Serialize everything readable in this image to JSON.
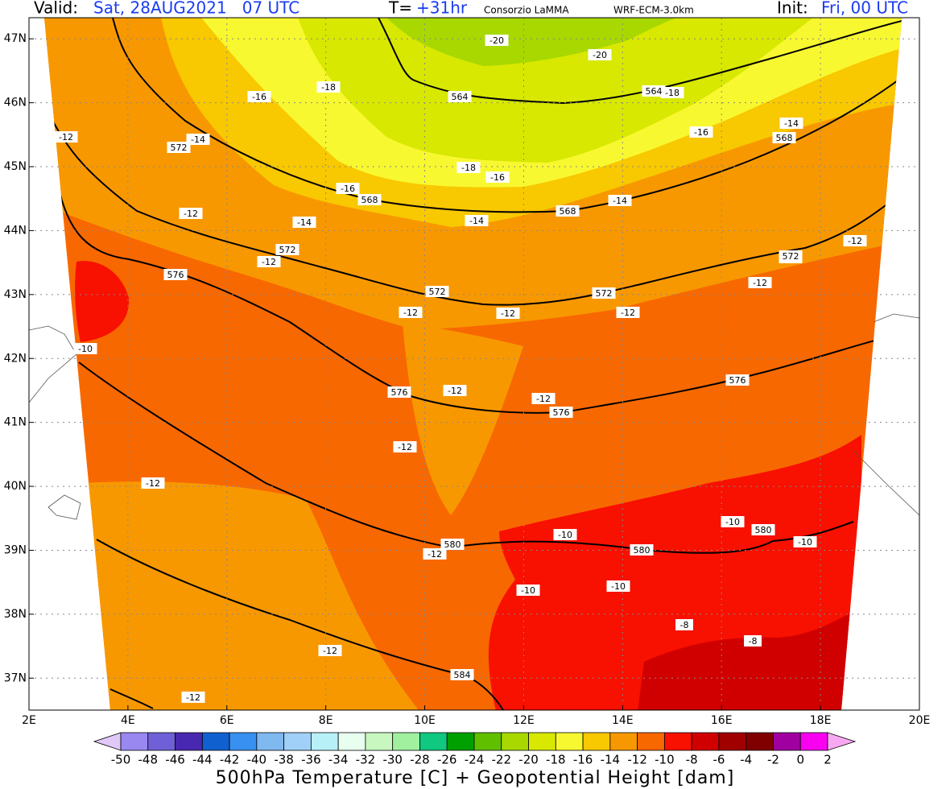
{
  "header": {
    "valid_label": "Valid:",
    "valid_time": "Sat, 28AUG2021   07 UTC",
    "lead_label": "T=",
    "lead_time": "+31hr",
    "source": "Consorzio LaMMA",
    "model": "WRF-ECM-3.0km",
    "init_label": "Init:",
    "init_time": "Fri, 00 UTC"
  },
  "map": {
    "xlim": [
      2,
      20
    ],
    "ylim": [
      36.5,
      47.33
    ],
    "xticks": [
      {
        "value": 2,
        "label": "2E"
      },
      {
        "value": 4,
        "label": "4E"
      },
      {
        "value": 6,
        "label": "6E"
      },
      {
        "value": 8,
        "label": "8E"
      },
      {
        "value": 10,
        "label": "10E"
      },
      {
        "value": 12,
        "label": "12E"
      },
      {
        "value": 14,
        "label": "14E"
      },
      {
        "value": 16,
        "label": "16E"
      },
      {
        "value": 18,
        "label": "18E"
      },
      {
        "value": 20,
        "label": "20E"
      }
    ],
    "yticks": [
      {
        "value": 37,
        "label": "37N"
      },
      {
        "value": 38,
        "label": "38N"
      },
      {
        "value": 39,
        "label": "39N"
      },
      {
        "value": 40,
        "label": "40N"
      },
      {
        "value": 41,
        "label": "41N"
      },
      {
        "value": 42,
        "label": "42N"
      },
      {
        "value": 43,
        "label": "43N"
      },
      {
        "value": 44,
        "label": "44N"
      },
      {
        "value": 45,
        "label": "45N"
      },
      {
        "value": 46,
        "label": "46N"
      },
      {
        "value": 47,
        "label": "47N"
      }
    ],
    "grid": true,
    "contour_labels": [
      "-20",
      "-20",
      "-18",
      "-16",
      "-18",
      "-12",
      "-14",
      "-16",
      "-14",
      "-18",
      "-16",
      "-16",
      "-14",
      "-14",
      "-14",
      "-12",
      "-12",
      "-12",
      "-12",
      "-12",
      "-12",
      "-12",
      "-12",
      "-12",
      "-12",
      "-12",
      "-12",
      "-10",
      "-10",
      "-10",
      "-12",
      "-10",
      "-10",
      "-8",
      "-8",
      "-12",
      "-12",
      "-10",
      "564",
      "564",
      "572",
      "568",
      "568",
      "568",
      "572",
      "572",
      "576",
      "572",
      "572",
      "576",
      "576",
      "576",
      "580",
      "580",
      "580",
      "584"
    ]
  },
  "colorbar": {
    "ticks": [
      -50,
      -48,
      -46,
      -44,
      -42,
      -40,
      -38,
      -36,
      -34,
      -32,
      -30,
      -28,
      -26,
      -24,
      -22,
      -20,
      -18,
      -16,
      -14,
      -12,
      -10,
      -8,
      -6,
      -4,
      -2,
      0,
      2
    ],
    "colors": [
      "#e0c8f8",
      "#9888f0",
      "#7060d8",
      "#4828b0",
      "#1060d0",
      "#3890f0",
      "#80b8f0",
      "#a0d0f8",
      "#b8f0f8",
      "#e8fff0",
      "#c8f8c0",
      "#a0f0a0",
      "#10c880",
      "#00a000",
      "#60c000",
      "#a8d800",
      "#d8e800",
      "#f8f830",
      "#f8c800",
      "#f89800",
      "#f86800",
      "#f81000",
      "#d00000",
      "#a00000",
      "#800000",
      "#a000a0",
      "#f800f0",
      "#f8a8f0"
    ],
    "title": "500hPa Temperature [C] + Geopotential Height [dam]"
  }
}
